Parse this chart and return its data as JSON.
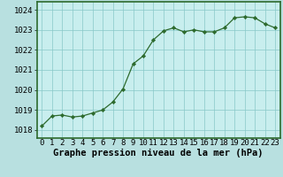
{
  "x": [
    0,
    1,
    2,
    3,
    4,
    5,
    6,
    7,
    8,
    9,
    10,
    11,
    12,
    13,
    14,
    15,
    16,
    17,
    18,
    19,
    20,
    21,
    22,
    23
  ],
  "y": [
    1018.2,
    1018.7,
    1018.75,
    1018.65,
    1018.7,
    1018.85,
    1019.0,
    1019.4,
    1020.05,
    1021.3,
    1021.7,
    1022.5,
    1022.95,
    1023.1,
    1022.9,
    1023.0,
    1022.9,
    1022.9,
    1023.1,
    1023.6,
    1023.65,
    1023.6,
    1023.3,
    1023.1
  ],
  "line_color": "#2d6a2d",
  "marker_color": "#2d6a2d",
  "bg_color": "#b8e0e0",
  "plot_bg_color": "#c8eeee",
  "grid_color": "#88c8c8",
  "border_color": "#2d6a2d",
  "ylabel_ticks": [
    1018,
    1019,
    1020,
    1021,
    1022,
    1023,
    1024
  ],
  "ylim": [
    1017.6,
    1024.4
  ],
  "xlabel_label": "Graphe pression niveau de la mer (hPa)",
  "tick_fontsize": 6.5,
  "label_fontsize": 7.5
}
